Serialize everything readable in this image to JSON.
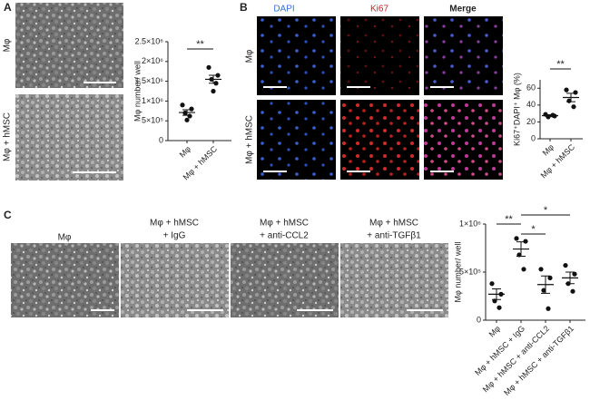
{
  "figure": {
    "panels": [
      "A",
      "B",
      "C"
    ],
    "a_rows": [
      "Mφ",
      "Mφ + hMSC"
    ],
    "b_columns": [
      "DAPI",
      "Ki67",
      "Merge"
    ],
    "b_rows": [
      "Mφ",
      "Mφ + hMSC"
    ],
    "c_images": [
      [
        "Mφ"
      ],
      [
        "Mφ + hMSC",
        "+ IgG"
      ],
      [
        "Mφ + hMSC",
        "+ anti-CCL2"
      ],
      [
        "Mφ + hMSC",
        "+ anti-TGFβ1"
      ]
    ]
  },
  "chart_data": [
    {
      "type": "dot",
      "y_label": "Mφ number/ well",
      "categories": [
        "Mφ",
        "Mφ + hMSC"
      ],
      "ylim": [
        0,
        2500000
      ],
      "yticks": [
        0,
        {
          "value": 500000,
          "label": "5×10⁵"
        },
        {
          "value": 1000000,
          "label": "1×10⁶"
        },
        {
          "value": 1500000,
          "label": "1.5×10⁶"
        },
        {
          "value": 2000000,
          "label": "2×10⁶"
        },
        {
          "value": 2500000,
          "label": "2.5×10⁶"
        }
      ],
      "points": [
        [
          900000,
          800000,
          700000,
          620000,
          520000
        ],
        [
          1850000,
          1650000,
          1550000,
          1450000,
          1250000
        ]
      ],
      "mean": [
        710000,
        1550000
      ],
      "sem": [
        70000,
        100000
      ],
      "annotations": [
        "**"
      ]
    },
    {
      "type": "dot",
      "y_label": "Ki67⁺DAPI⁺ Mφ (%)",
      "categories": [
        "Mφ",
        "Mφ + hMSC"
      ],
      "ylim": [
        0,
        70
      ],
      "yticks": [
        0,
        20,
        40,
        60
      ],
      "points": [
        [
          29,
          27,
          26,
          28
        ],
        [
          58,
          55,
          45,
          38
        ]
      ],
      "mean": [
        27.5,
        49
      ],
      "sem": [
        1,
        5
      ],
      "annotations": [
        "**"
      ]
    },
    {
      "type": "dot",
      "y_label": "Mφ number/ well",
      "categories": [
        "Mφ",
        "Mφ + hMSC + IgG",
        "Mφ + hMSC + anti-CCL2",
        "Mφ + hMSC + anti-TGFβ1"
      ],
      "ylim": [
        0,
        1000000
      ],
      "yticks": [
        0,
        {
          "value": 500000,
          "label": "5×10⁵"
        },
        {
          "value": 1000000,
          "label": "1×10⁶"
        }
      ],
      "points": [
        [
          380000,
          270000,
          200000,
          130000
        ],
        [
          850000,
          820000,
          680000,
          530000
        ],
        [
          530000,
          440000,
          310000,
          120000
        ],
        [
          570000,
          480000,
          380000,
          300000
        ]
      ],
      "mean": [
        270000,
        740000,
        370000,
        440000
      ],
      "sem": [
        55000,
        75000,
        90000,
        60000
      ],
      "annotations": [
        "**",
        "*",
        "*"
      ]
    }
  ]
}
